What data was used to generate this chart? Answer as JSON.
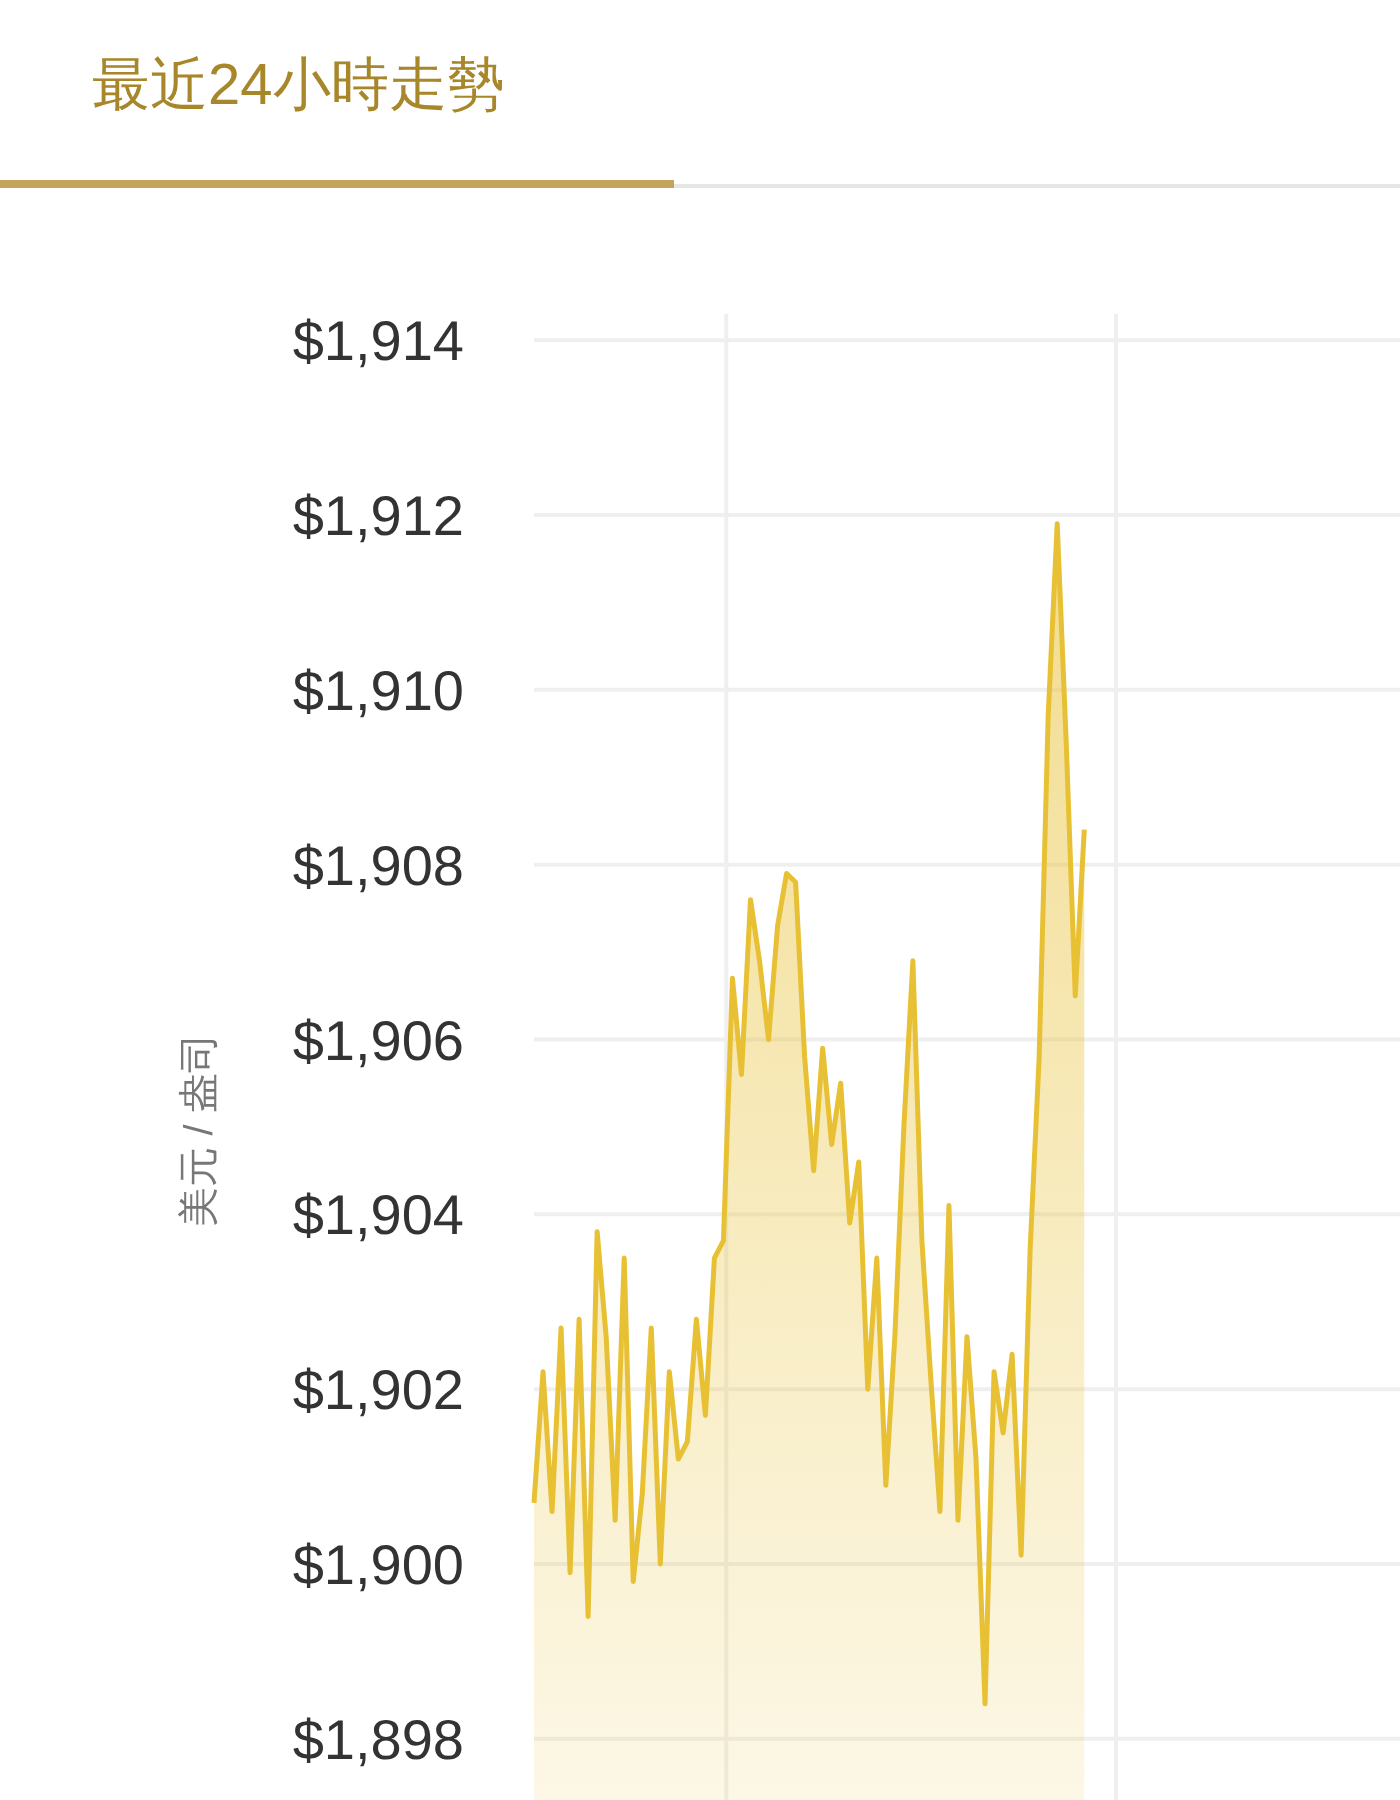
{
  "chart_data": {
    "type": "area",
    "title": "最近24小時走勢",
    "ylabel": "美元 / 盎司",
    "categories": [
      null,
      null,
      null,
      null,
      null,
      null,
      null,
      null,
      null,
      null,
      null,
      null,
      null,
      null,
      null,
      null,
      null,
      null,
      null,
      null,
      null,
      null,
      null,
      null,
      null,
      null,
      null,
      null,
      null,
      null,
      null,
      null,
      null,
      null,
      null,
      null,
      null,
      null,
      null,
      null,
      null,
      null,
      null,
      null,
      null,
      null,
      null,
      null,
      null,
      null,
      null,
      null,
      null,
      null,
      null,
      null,
      null,
      null,
      null,
      null,
      null,
      null,
      null,
      null,
      null,
      null,
      null,
      null,
      null,
      null,
      null,
      null,
      null,
      null,
      null,
      null,
      null,
      null,
      null,
      null,
      null,
      null,
      null,
      null,
      null,
      null,
      null,
      null,
      null,
      null,
      null,
      null,
      null,
      null,
      null,
      null,
      null
    ],
    "values": [
      1900.7,
      1902.2,
      1900.6,
      1902.7,
      1899.9,
      1902.8,
      1899.4,
      1903.8,
      1902.6,
      1900.5,
      1903.5,
      1899.8,
      1900.8,
      1902.7,
      1900.0,
      1902.2,
      1901.2,
      1901.4,
      1902.8,
      1901.7,
      1903.5,
      1903.7,
      1906.7,
      1905.6,
      1907.6,
      1906.9,
      1906.0,
      1907.3,
      1907.9,
      1907.8,
      1905.8,
      1904.5,
      1905.9,
      1904.8,
      1905.5,
      1903.9,
      1904.6,
      1902.0,
      1903.5,
      1900.9,
      1902.6,
      1905.0,
      1906.9,
      1903.7,
      1902.1,
      1900.6,
      1904.1,
      1900.5,
      1902.6,
      1901.2,
      1898.4,
      1902.2,
      1901.5,
      1902.4,
      1900.1,
      1903.6,
      1905.8,
      1909.7,
      1911.9,
      1909.4,
      1906.5,
      1908.4,
      null,
      null,
      null,
      null,
      null,
      null,
      null,
      null,
      null,
      null,
      null,
      null,
      null,
      null,
      null,
      null,
      null,
      null,
      null,
      null,
      null,
      null,
      null,
      null,
      null,
      null,
      null,
      null,
      null,
      null,
      null,
      null,
      null,
      null,
      null
    ],
    "color": "#e8c033",
    "ylim": [
      1897.3,
      1914.3
    ],
    "yticks": [
      {
        "value": 1898,
        "label": "$1,898"
      },
      {
        "value": 1900,
        "label": "$1,900"
      },
      {
        "value": 1902,
        "label": "$1,902"
      },
      {
        "value": 1904,
        "label": "$1,904"
      },
      {
        "value": 1906,
        "label": "$1,906"
      },
      {
        "value": 1908,
        "label": "$1,908"
      },
      {
        "value": 1910,
        "label": "$1,910"
      },
      {
        "value": 1912,
        "label": "$1,912"
      },
      {
        "value": 1914,
        "label": "$1,914"
      }
    ],
    "grid": true
  }
}
